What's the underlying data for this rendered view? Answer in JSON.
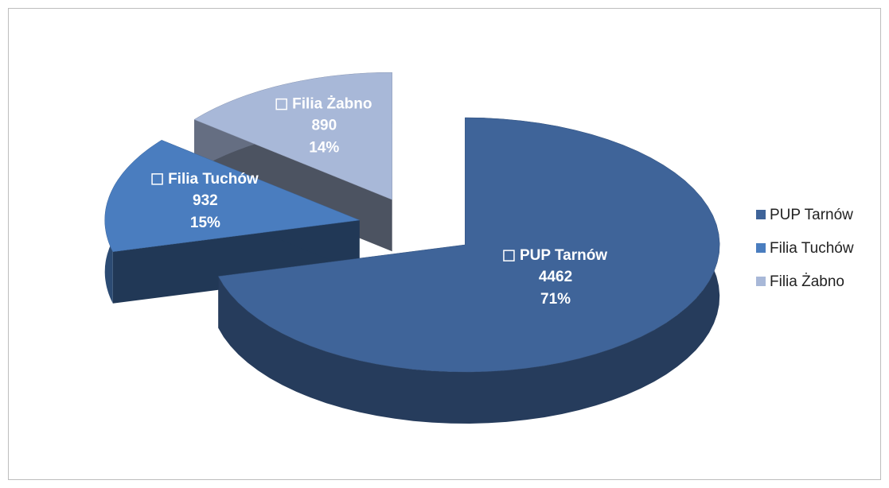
{
  "chart_data": {
    "type": "pie3d",
    "categories": [
      "PUP Tarnów",
      "Filia Tuchów",
      "Filia Żabno"
    ],
    "values": [
      4462,
      932,
      890
    ],
    "percent_labels": [
      "71%",
      "15%",
      "14%"
    ],
    "colors": [
      "#3f6499",
      "#4a7dbf",
      "#a8b8d8"
    ],
    "exploded": true,
    "legend": "right"
  }
}
